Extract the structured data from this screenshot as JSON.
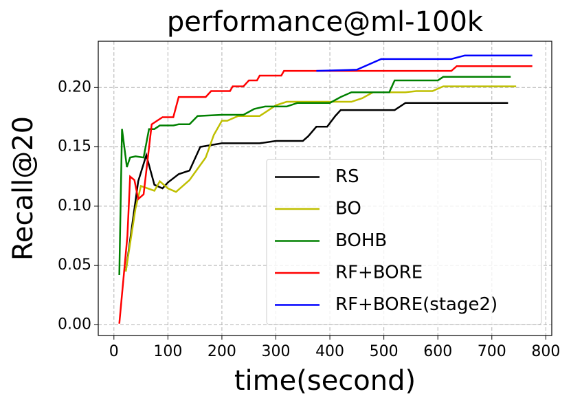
{
  "chart_data": {
    "type": "line",
    "title": "performance@ml-100k",
    "xlabel": "time(second)",
    "ylabel": "Recall@20",
    "xlim": [
      -29,
      811
    ],
    "ylim": [
      -0.009,
      0.239
    ],
    "xticks": [
      0,
      100,
      200,
      300,
      400,
      500,
      600,
      700,
      800
    ],
    "yticks": [
      {
        "value": 0,
        "label": "0.00"
      },
      {
        "value": 0.05,
        "label": "0.05"
      },
      {
        "value": 0.1,
        "label": "0.10"
      },
      {
        "value": 0.15,
        "label": "0.15"
      },
      {
        "value": 0.2,
        "label": "0.20"
      }
    ],
    "grid": true,
    "legend": "lower right",
    "series": [
      {
        "name": "RS",
        "color": "#000000",
        "x": [
          22,
          45,
          60,
          75,
          90,
          100,
          120,
          140,
          160,
          200,
          270,
          300,
          350,
          360,
          375,
          395,
          410,
          420,
          520,
          540,
          730
        ],
        "values": [
          0.045,
          0.121,
          0.143,
          0.118,
          0.115,
          0.12,
          0.127,
          0.13,
          0.15,
          0.153,
          0.153,
          0.155,
          0.155,
          0.159,
          0.167,
          0.167,
          0.176,
          0.181,
          0.181,
          0.187,
          0.187
        ]
      },
      {
        "name": "BO",
        "color": "#bfbf00",
        "x": [
          22,
          40,
          50,
          75,
          85,
          100,
          115,
          140,
          170,
          185,
          200,
          210,
          230,
          270,
          300,
          320,
          440,
          460,
          480,
          540,
          560,
          590,
          610,
          745
        ],
        "values": [
          0.045,
          0.098,
          0.117,
          0.113,
          0.121,
          0.115,
          0.112,
          0.122,
          0.141,
          0.16,
          0.172,
          0.172,
          0.176,
          0.176,
          0.185,
          0.188,
          0.188,
          0.191,
          0.196,
          0.196,
          0.197,
          0.197,
          0.201,
          0.201
        ]
      },
      {
        "name": "BOHB",
        "color": "#008000",
        "x": [
          10,
          15,
          24,
          30,
          40,
          55,
          65,
          75,
          85,
          110,
          120,
          140,
          155,
          200,
          240,
          260,
          280,
          320,
          340,
          400,
          420,
          440,
          510,
          520,
          600,
          610,
          735
        ],
        "values": [
          0.042,
          0.165,
          0.133,
          0.141,
          0.142,
          0.141,
          0.165,
          0.165,
          0.168,
          0.168,
          0.169,
          0.169,
          0.176,
          0.177,
          0.177,
          0.182,
          0.184,
          0.184,
          0.187,
          0.187,
          0.192,
          0.196,
          0.196,
          0.206,
          0.206,
          0.209,
          0.209
        ]
      },
      {
        "name": "RF+BORE",
        "color": "#ff0000",
        "x": [
          10,
          25,
          30,
          38,
          45,
          55,
          70,
          80,
          90,
          110,
          120,
          170,
          180,
          215,
          220,
          240,
          250,
          265,
          270,
          310,
          315,
          625,
          635,
          775
        ],
        "values": [
          0.001,
          0.075,
          0.125,
          0.122,
          0.106,
          0.11,
          0.169,
          0.172,
          0.175,
          0.175,
          0.192,
          0.192,
          0.197,
          0.197,
          0.201,
          0.201,
          0.206,
          0.206,
          0.21,
          0.21,
          0.214,
          0.214,
          0.218,
          0.218
        ]
      },
      {
        "name": "RF+BORE(stage2)",
        "color": "#0000ff",
        "x": [
          375,
          450,
          495,
          625,
          650,
          775
        ],
        "values": [
          0.214,
          0.215,
          0.224,
          0.224,
          0.227,
          0.227
        ]
      }
    ]
  }
}
